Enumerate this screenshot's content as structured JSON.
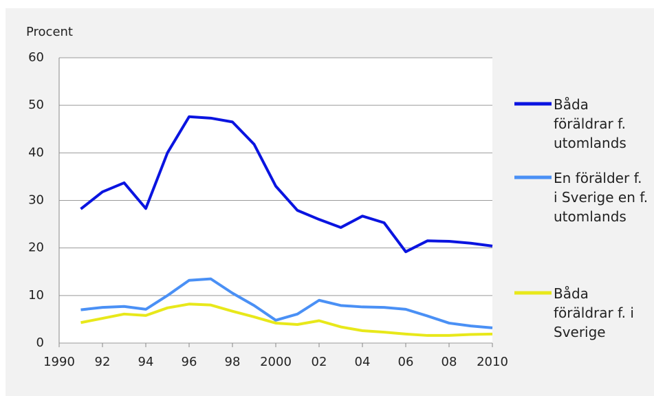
{
  "chart_data": {
    "type": "line",
    "y_label": "Procent",
    "x": [
      1991,
      1992,
      1993,
      1994,
      1995,
      1996,
      1997,
      1998,
      1999,
      2000,
      2001,
      2002,
      2003,
      2004,
      2005,
      2006,
      2007,
      2008,
      2009,
      2010
    ],
    "series": [
      {
        "name": "Båda föräldrar f. utomlands",
        "color": "#0a14e0",
        "values": [
          28.2,
          31.8,
          33.7,
          28.3,
          40,
          47.6,
          47.3,
          46.5,
          41.8,
          33,
          27.9,
          26,
          24.3,
          26.7,
          25.3,
          19.2,
          21.5,
          21.4,
          21,
          20.4
        ]
      },
      {
        "name": "En förälder f. i Sverige en f. utomlands",
        "color": "#4a90f5",
        "values": [
          7,
          7.5,
          7.7,
          7.1,
          10,
          13.2,
          13.5,
          10.5,
          7.9,
          4.8,
          6.1,
          9,
          7.9,
          7.6,
          7.5,
          7.1,
          5.7,
          4.2,
          3.6,
          3.2
        ]
      },
      {
        "name": "Båda föräldrar f. i Sverige",
        "color": "#e8e81a",
        "values": [
          4.3,
          5.2,
          6.1,
          5.8,
          7.4,
          8.2,
          8,
          6.7,
          5.5,
          4.2,
          3.9,
          4.7,
          3.4,
          2.6,
          2.3,
          1.9,
          1.6,
          1.6,
          1.8,
          1.9
        ]
      }
    ],
    "xlim": [
      1990,
      2010
    ],
    "xticks": [
      1990,
      {
        "value": 1992,
        "label": "92"
      },
      {
        "value": 1994,
        "label": "94"
      },
      {
        "value": 1996,
        "label": "96"
      },
      {
        "value": 1998,
        "label": "98"
      },
      2000,
      {
        "value": 2002,
        "label": "02"
      },
      {
        "value": 2004,
        "label": "04"
      },
      {
        "value": 2006,
        "label": "06"
      },
      {
        "value": 2008,
        "label": "08"
      },
      2010
    ],
    "ylim": [
      0,
      60
    ],
    "yticks": [
      0,
      10,
      20,
      30,
      40,
      50,
      60
    ],
    "grid": true
  }
}
